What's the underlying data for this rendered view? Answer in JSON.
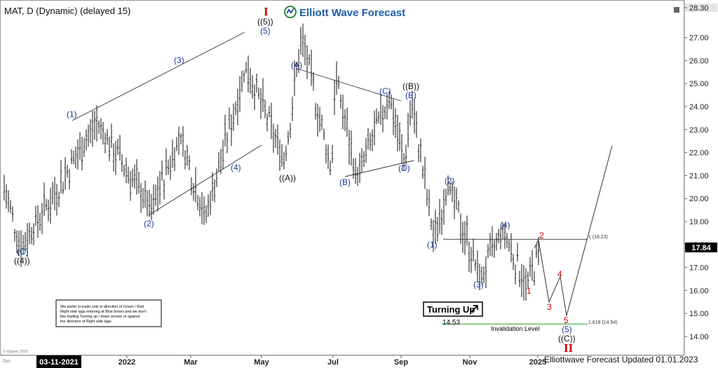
{
  "ticker": "MAT, D (Dynamic) (delayed 15)",
  "brand": {
    "name": "Elliott Wave Forecast",
    "accent": "#1f5ea8",
    "icon": "elliott-wave-logo-icon"
  },
  "colors": {
    "blue_label": "#1d3c9c",
    "red_label": "#d10000",
    "invalidation_line": "#22a022",
    "price_box": "#000000",
    "date_box": "#000000"
  },
  "price_axis": {
    "ticks": [
      "28.30",
      "27.00",
      "26.00",
      "25.00",
      "24.00",
      "23.00",
      "22.00",
      "21.00",
      "20.00",
      "19.00",
      "18.00",
      "17.00",
      "16.00",
      "15.00",
      "14.00"
    ],
    "current_price": "17.84"
  },
  "time_axis": {
    "start_label": "03-11-2021",
    "labels": [
      "2022",
      "Mar",
      "May",
      "Jul",
      "Sep",
      "Nov",
      "2025"
    ]
  },
  "note_lines": [
    "We prefer to trade only in direction of Green / Red",
    "Right side tags entering at Blue boxes and we don't",
    "like trading Turning up / down arrows or against",
    "the direction of Right side tags."
  ],
  "turning_up_label": "Turning Up",
  "invalidation_price": "14.53",
  "invalidation_label": "Invalidation Level",
  "fib_1_label": "1 (18.23)",
  "fib_1618_label": "1.618 (14.54)",
  "footer": "Elliottwave Forecast Updated 01.01.2023",
  "copyright": "© eSignal, 2023",
  "dyn_label": "Dyn",
  "wave_labels": {
    "c_low": "(C)",
    "w4_low": "((4))",
    "w1": "(1)",
    "w2": "(2)",
    "w3": "(3)",
    "w4": "(4)",
    "w5": "(5)",
    "w5_top": "((5))",
    "roman_I": "I",
    "a": "(A)",
    "aa": "((A))",
    "b": "(B)",
    "c_tri": "(C)",
    "d": "(D)",
    "e": "(E)",
    "bb": "((B))",
    "n1": "(1)",
    "n2": "(2)",
    "n3": "(3)",
    "n4": "(4)",
    "n5": "(5)",
    "cc": "((C))",
    "roman_II": "II",
    "r1": "1",
    "r2": "2",
    "r3": "3",
    "r4": "4",
    "r5": "5"
  },
  "chart_data": {
    "type": "bar",
    "title": "MAT, D (Dynamic) (delayed 15)",
    "ylim": [
      13.6,
      28.5
    ],
    "swing_points": [
      {
        "date": "2021-03-11",
        "price": 20.7
      },
      {
        "date": "2021-04-05",
        "price": 17.8,
        "label": "(C) ((4))"
      },
      {
        "date": "2021-07-20",
        "price": 23.3,
        "label": "(1)"
      },
      {
        "date": "2021-10-05",
        "price": 19.6
      },
      {
        "date": "2021-11-15",
        "price": 22.7
      },
      {
        "date": "2021-12-20",
        "price": 19.2,
        "label": "(2)"
      },
      {
        "date": "2022-02-15",
        "price": 25.7,
        "label": "(3)"
      },
      {
        "date": "2022-04-10",
        "price": 21.6,
        "label": "(4)"
      },
      {
        "date": "2022-05-04",
        "price": 27.1,
        "label": "(5) ((5)) I"
      },
      {
        "date": "2022-06-15",
        "price": 21.1,
        "label": "((A))"
      },
      {
        "date": "2022-06-20",
        "price": 25.5,
        "label": "(A)"
      },
      {
        "date": "2022-07-20",
        "price": 20.9,
        "label": "(B)"
      },
      {
        "date": "2022-09-05",
        "price": 24.4,
        "label": "(C)"
      },
      {
        "date": "2022-09-25",
        "price": 21.5,
        "label": "(D)"
      },
      {
        "date": "2022-10-05",
        "price": 24.3,
        "label": "(E) ((B))"
      },
      {
        "date": "2022-11-05",
        "price": 18.3,
        "label": "(1)"
      },
      {
        "date": "2022-11-25",
        "price": 20.6,
        "label": "(2)"
      },
      {
        "date": "2023-01-10",
        "price": 16.5,
        "label": "(3)"
      },
      {
        "date": "2023-02-10",
        "price": 18.6,
        "label": "(4)"
      },
      {
        "date": "2023-03-15",
        "price": 16.2,
        "label": "1"
      },
      {
        "date": "2023-04-05",
        "price": 17.84
      }
    ],
    "projection": [
      {
        "label": "2",
        "price": 18.2
      },
      {
        "label": "3",
        "price": 15.5
      },
      {
        "label": "4",
        "price": 16.6
      },
      {
        "label": "5",
        "price": 14.9
      },
      {
        "label": "((C)) II",
        "price": 14.5
      },
      {
        "label": "",
        "price": 22.3
      }
    ],
    "levels": [
      {
        "label": "1 (18.23)",
        "price": 18.23
      },
      {
        "label": "1.618 (14.54)",
        "price": 14.54
      }
    ],
    "invalidation": 14.53
  }
}
